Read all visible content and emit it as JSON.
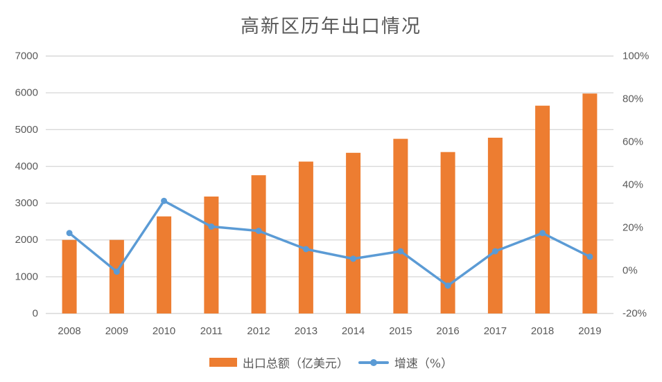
{
  "title": "高新区历年出口情况",
  "legend": {
    "bars_label": "出口总额（亿美元）",
    "line_label": "增速（%）"
  },
  "colors": {
    "bar": "#ED7D31",
    "line": "#5B9BD5",
    "grid": "#D9D9D9",
    "text": "#595959",
    "background": "#FFFFFF"
  },
  "chart_data": {
    "type": "bar",
    "subtype": "bar+line-dual-axis",
    "title": "高新区历年出口情况",
    "categories": [
      "2008",
      "2009",
      "2010",
      "2011",
      "2012",
      "2013",
      "2014",
      "2015",
      "2016",
      "2017",
      "2018",
      "2019"
    ],
    "series": [
      {
        "name": "出口总额（亿美元）",
        "type": "bar",
        "axis": "left",
        "values": [
          2000,
          2000,
          2640,
          3180,
          3760,
          4130,
          4370,
          4750,
          4390,
          4780,
          5650,
          5980
        ]
      },
      {
        "name": "增速（%）",
        "type": "line",
        "axis": "right",
        "values": [
          17.5,
          -0.5,
          32.5,
          20.5,
          18.5,
          10,
          5.5,
          9,
          -7,
          9,
          17.5,
          6.5
        ]
      }
    ],
    "left_axis": {
      "min": 0,
      "max": 7000,
      "step": 1000,
      "tick_labels": [
        "0",
        "1000",
        "2000",
        "3000",
        "4000",
        "5000",
        "6000",
        "7000"
      ]
    },
    "right_axis": {
      "min": -20,
      "max": 100,
      "step": 20,
      "tick_labels": [
        "-20%",
        "0%",
        "20%",
        "40%",
        "60%",
        "80%",
        "100%"
      ]
    },
    "grid": true,
    "legend_position": "bottom"
  }
}
